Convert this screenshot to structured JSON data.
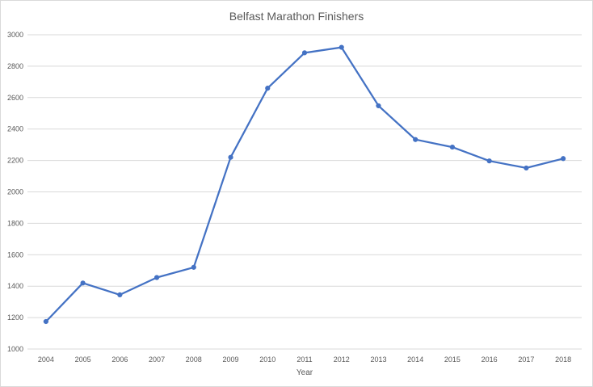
{
  "chart_data": {
    "type": "line",
    "title": "Belfast Marathon Finishers",
    "xlabel": "Year",
    "ylabel": "",
    "categories": [
      "2004",
      "2005",
      "2006",
      "2007",
      "2008",
      "2009",
      "2010",
      "2011",
      "2012",
      "2013",
      "2014",
      "2015",
      "2016",
      "2017",
      "2018"
    ],
    "series": [
      {
        "values": [
          1175,
          1420,
          1345,
          1455,
          1520,
          2220,
          2660,
          2885,
          2920,
          2548,
          2333,
          2285,
          2197,
          2152,
          2212
        ]
      }
    ],
    "ylim": [
      1000,
      3000
    ],
    "yticks": [
      1000,
      1200,
      1400,
      1600,
      1800,
      2000,
      2200,
      2400,
      2600,
      2800,
      3000
    ],
    "grid": true,
    "legend": "none",
    "colors": {
      "line": "#4472c4",
      "grid": "#d9d9d9",
      "text": "#595959"
    }
  }
}
